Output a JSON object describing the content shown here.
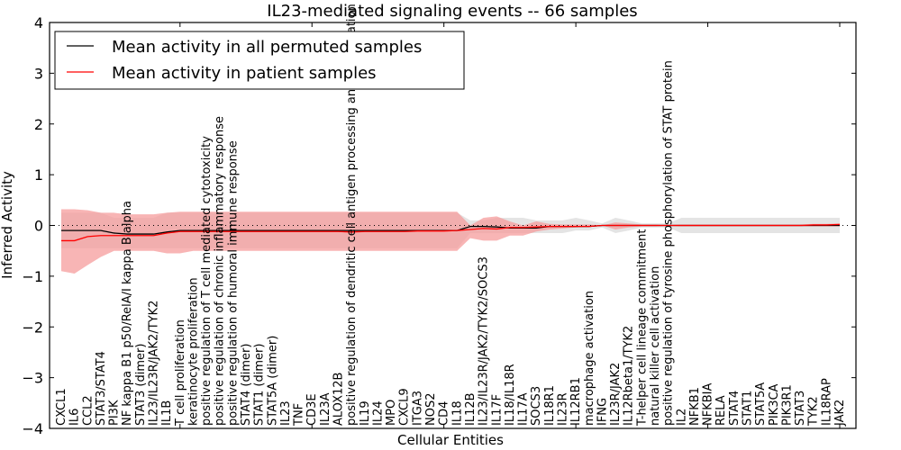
{
  "chart_data": {
    "type": "line",
    "title": "IL23-mediated signaling events -- 66 samples",
    "xlabel": "Cellular Entities",
    "ylabel": "Inferred Activity",
    "ylim": [
      -4,
      4
    ],
    "yticks": [
      -4,
      -3,
      -2,
      -1,
      0,
      1,
      2,
      3,
      4
    ],
    "ytick_labels": [
      "−4",
      "−3",
      "−2",
      "−1",
      "0",
      "1",
      "2",
      "3",
      "4"
    ],
    "grid": false,
    "zero_line": "dotted",
    "legend_position": "top-left",
    "categories": [
      "CXCL1",
      "IL6",
      "CCL2",
      "STAT3/STAT4",
      "PI3K",
      "NF kappa B1 p50/RelA/I kappa B alpha",
      "STAT3 (dimer)",
      "IL23/IL23R/JAK2/TYK2",
      "IL1B",
      "T cell proliferation",
      "keratinocyte proliferation",
      "positive regulation of T cell mediated cytotoxicity",
      "positive regulation of chronic inflammatory response",
      "positive regulation of humoral immune response",
      "STAT4 (dimer)",
      "STAT1 (dimer)",
      "STAT5A (dimer)",
      "IL23",
      "TNF",
      "CD3E",
      "IL23A",
      "ALOX12B",
      "positive regulation of dendritic cell antigen processing and presentation",
      "IL19",
      "IL24",
      "MPO",
      "CXCL9",
      "ITGA3",
      "NOS2",
      "CD4",
      "IL18",
      "IL12B",
      "IL23/IL23R/JAK2/TYK2/SOCS3",
      "IL17F",
      "IL18/IL18R",
      "IL17A",
      "SOCS3",
      "IL18R1",
      "IL23R",
      "IL12RB1",
      "macrophage activation",
      "IFNG",
      "IL23R/JAK2",
      "IL12Rbeta1/TYK2",
      "T-helper cell lineage commitment",
      "natural killer cell activation",
      "positive regulation of tyrosine phosphorylation of STAT protein",
      "IL2",
      "NFKB1",
      "NFKBIA",
      "RELA",
      "STAT4",
      "STAT1",
      "STAT5A",
      "PIK3CA",
      "PIK3R1",
      "STAT3",
      "TYK2",
      "IL18RAP",
      "JAK2"
    ],
    "series": [
      {
        "name": "Mean activity in all permuted samples",
        "color": "#000000",
        "values": [
          -0.1,
          -0.1,
          -0.1,
          -0.1,
          -0.15,
          -0.17,
          -0.17,
          -0.17,
          -0.13,
          -0.1,
          -0.1,
          -0.1,
          -0.1,
          -0.1,
          -0.1,
          -0.1,
          -0.1,
          -0.1,
          -0.1,
          -0.1,
          -0.1,
          -0.1,
          -0.1,
          -0.1,
          -0.1,
          -0.1,
          -0.1,
          -0.1,
          -0.1,
          -0.1,
          -0.1,
          -0.02,
          -0.02,
          -0.03,
          -0.05,
          -0.05,
          -0.05,
          -0.02,
          -0.02,
          -0.02,
          -0.02,
          0.0,
          0.0,
          0.0,
          0.0,
          0.0,
          0.0,
          0.0,
          0.0,
          0.0,
          0.0,
          0.0,
          0.0,
          0.0,
          0.0,
          0.0,
          0.0,
          0.0,
          0.0,
          0.0
        ],
        "band": {
          "color": "#d8d8d8",
          "lower": [
            -0.45,
            -0.45,
            -0.45,
            -0.45,
            -0.45,
            -0.45,
            -0.45,
            -0.45,
            -0.45,
            -0.45,
            -0.45,
            -0.45,
            -0.45,
            -0.45,
            -0.45,
            -0.45,
            -0.45,
            -0.45,
            -0.45,
            -0.45,
            -0.45,
            -0.45,
            -0.45,
            -0.45,
            -0.45,
            -0.45,
            -0.45,
            -0.45,
            -0.45,
            -0.45,
            -0.45,
            -0.15,
            -0.15,
            -0.15,
            -0.15,
            -0.15,
            -0.15,
            -0.15,
            -0.15,
            -0.1,
            -0.1,
            -0.04,
            -0.15,
            -0.1,
            -0.04,
            -0.04,
            -0.04,
            -0.15,
            -0.15,
            -0.15,
            -0.15,
            -0.15,
            -0.15,
            -0.15,
            -0.15,
            -0.15,
            -0.15,
            -0.15,
            -0.15,
            -0.15
          ],
          "upper": [
            0.25,
            0.25,
            0.25,
            0.25,
            0.15,
            0.15,
            0.15,
            0.15,
            0.25,
            0.25,
            0.25,
            0.25,
            0.25,
            0.25,
            0.25,
            0.25,
            0.25,
            0.25,
            0.25,
            0.25,
            0.25,
            0.25,
            0.25,
            0.25,
            0.25,
            0.25,
            0.25,
            0.25,
            0.25,
            0.25,
            0.25,
            0.1,
            0.1,
            0.15,
            0.15,
            0.15,
            0.1,
            0.1,
            0.1,
            0.15,
            0.1,
            0.04,
            0.15,
            0.1,
            0.04,
            0.04,
            0.04,
            0.15,
            0.15,
            0.15,
            0.15,
            0.15,
            0.15,
            0.15,
            0.15,
            0.15,
            0.15,
            0.15,
            0.15,
            0.15
          ]
        }
      },
      {
        "name": "Mean activity in patient samples",
        "color": "#ff0000",
        "values": [
          -0.3,
          -0.3,
          -0.22,
          -0.2,
          -0.2,
          -0.2,
          -0.2,
          -0.2,
          -0.15,
          -0.12,
          -0.12,
          -0.12,
          -0.12,
          -0.12,
          -0.12,
          -0.12,
          -0.12,
          -0.12,
          -0.12,
          -0.12,
          -0.12,
          -0.12,
          -0.13,
          -0.12,
          -0.12,
          -0.12,
          -0.12,
          -0.11,
          -0.11,
          -0.11,
          -0.1,
          -0.08,
          -0.06,
          -0.07,
          -0.04,
          -0.04,
          -0.03,
          -0.02,
          -0.02,
          -0.02,
          -0.02,
          0.0,
          0.0,
          0.0,
          0.0,
          0.0,
          0.0,
          0.0,
          0.0,
          0.0,
          0.0,
          0.0,
          0.0,
          0.0,
          0.0,
          0.0,
          0.0,
          0.01,
          0.01,
          0.02
        ],
        "band": {
          "color": "#f59c9c",
          "lower": [
            -0.9,
            -0.95,
            -0.78,
            -0.62,
            -0.5,
            -0.5,
            -0.5,
            -0.5,
            -0.55,
            -0.55,
            -0.5,
            -0.5,
            -0.5,
            -0.5,
            -0.5,
            -0.5,
            -0.5,
            -0.5,
            -0.5,
            -0.5,
            -0.5,
            -0.5,
            -0.5,
            -0.5,
            -0.5,
            -0.5,
            -0.5,
            -0.5,
            -0.5,
            -0.5,
            -0.5,
            -0.25,
            -0.3,
            -0.3,
            -0.2,
            -0.2,
            -0.12,
            -0.08,
            -0.06,
            -0.04,
            -0.02,
            0.0,
            -0.08,
            -0.04,
            -0.02,
            -0.02,
            -0.01,
            -0.02,
            -0.02,
            -0.02,
            -0.02,
            -0.02,
            -0.02,
            -0.02,
            -0.02,
            -0.02,
            -0.02,
            -0.02,
            -0.02,
            -0.02
          ],
          "upper": [
            0.32,
            0.32,
            0.3,
            0.25,
            0.25,
            0.22,
            0.22,
            0.22,
            0.25,
            0.27,
            0.27,
            0.27,
            0.27,
            0.27,
            0.27,
            0.27,
            0.27,
            0.27,
            0.27,
            0.27,
            0.27,
            0.27,
            0.27,
            0.27,
            0.27,
            0.27,
            0.27,
            0.27,
            0.27,
            0.27,
            0.27,
            0.0,
            0.15,
            0.18,
            0.08,
            0.0,
            0.08,
            0.03,
            0.02,
            0.02,
            0.02,
            0.0,
            0.06,
            0.04,
            0.02,
            0.02,
            0.01,
            0.02,
            0.02,
            0.02,
            0.02,
            0.02,
            0.02,
            0.02,
            0.02,
            0.02,
            0.02,
            0.03,
            0.03,
            0.04
          ]
        }
      }
    ]
  },
  "legend": {
    "items": [
      {
        "label": "Mean activity in all permuted samples",
        "color": "#000000"
      },
      {
        "label": "Mean activity in patient samples",
        "color": "#ff0000"
      }
    ]
  }
}
